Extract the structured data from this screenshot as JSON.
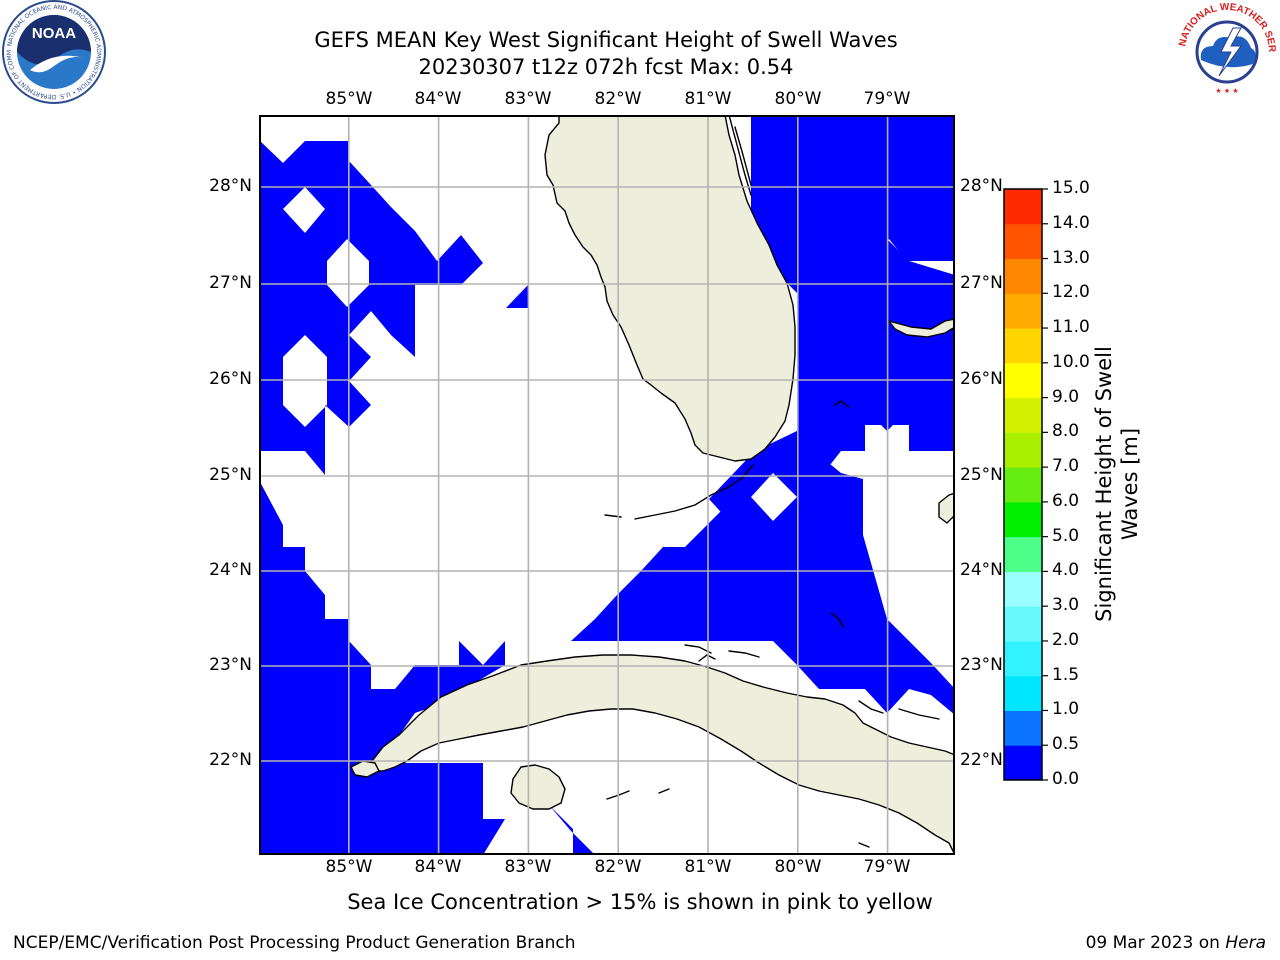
{
  "title": {
    "line1": "GEFS MEAN Key West Significant Height of Swell Waves",
    "line2": "20230307 t12z 072h fcst   Max: 0.54"
  },
  "map": {
    "region": "Key West",
    "projection": "PlateCarree",
    "lon_range": [
      -86.0,
      -78.25
    ],
    "lat_range": [
      21.0,
      28.75
    ],
    "grid": true,
    "lon_ticks": [
      "85°W",
      "84°W",
      "83°W",
      "82°W",
      "81°W",
      "80°W",
      "79°W"
    ],
    "lat_ticks": [
      "28°N",
      "27°N",
      "26°N",
      "25°N",
      "24°N",
      "23°N",
      "22°N"
    ],
    "land_color": "#eeeedc",
    "ocean_color": "#ffffff",
    "coastline_color": "#000000",
    "grid_color": "#b3b3b3"
  },
  "colorbar": {
    "label_line1": "Significant Height of Swell",
    "label_line2": "Waves [m]",
    "tick_labels": [
      "0.0",
      "0.5",
      "1.0",
      "1.5",
      "2.0",
      "3.0",
      "4.0",
      "5.0",
      "6.0",
      "7.0",
      "8.0",
      "9.0",
      "10.0",
      "11.0",
      "12.0",
      "13.0",
      "14.0",
      "15.0"
    ],
    "bands": [
      {
        "from": 0.0,
        "to": 0.5,
        "color": "#0000ff"
      },
      {
        "from": 0.5,
        "to": 1.0,
        "color": "#0a74ff"
      },
      {
        "from": 1.0,
        "to": 1.5,
        "color": "#00e6ff"
      },
      {
        "from": 1.5,
        "to": 2.0,
        "color": "#33f2ff"
      },
      {
        "from": 2.0,
        "to": 3.0,
        "color": "#66faff"
      },
      {
        "from": 3.0,
        "to": 4.0,
        "color": "#99ffff"
      },
      {
        "from": 4.0,
        "to": 5.0,
        "color": "#4dff88"
      },
      {
        "from": 5.0,
        "to": 6.0,
        "color": "#00f000"
      },
      {
        "from": 6.0,
        "to": 7.0,
        "color": "#66ee11"
      },
      {
        "from": 7.0,
        "to": 8.0,
        "color": "#aaee00"
      },
      {
        "from": 8.0,
        "to": 9.0,
        "color": "#d4f000"
      },
      {
        "from": 9.0,
        "to": 10.0,
        "color": "#ffff00"
      },
      {
        "from": 10.0,
        "to": 11.0,
        "color": "#ffd500"
      },
      {
        "from": 11.0,
        "to": 12.0,
        "color": "#ffaa00"
      },
      {
        "from": 12.0,
        "to": 13.0,
        "color": "#ff8800"
      },
      {
        "from": 13.0,
        "to": 14.0,
        "color": "#ff5500"
      },
      {
        "from": 14.0,
        "to": 15.0,
        "color": "#ff2a00"
      }
    ]
  },
  "field": {
    "variable": "Significant Height of Swell Waves",
    "units": "m",
    "max_value": 0.54,
    "filled_color": "#0000ff"
  },
  "caption": "Sea Ice Concentration > 15% is shown in pink to yellow",
  "footer": {
    "left": "NCEP/EMC/Verification Post Processing Product Generation Branch",
    "date": "09 Mar 2023",
    "on": "on",
    "machine": "Hera"
  },
  "logos": {
    "left": {
      "name": "noaa-logo",
      "text": "NOAA",
      "ring_text": "NATIONAL OCEANIC AND ATMOSPHERIC ADMINISTRATION • U.S. DEPARTMENT OF COMMERCE"
    },
    "right": {
      "name": "nws-logo",
      "ring_text": "NATIONAL WEATHER SERVICE"
    }
  }
}
